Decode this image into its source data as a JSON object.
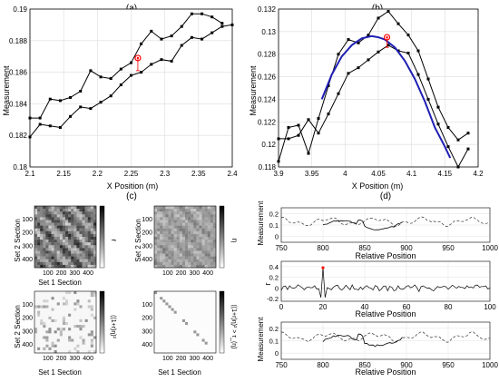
{
  "chart_data": [
    {
      "id": "a",
      "type": "line",
      "panel_label": "(a)",
      "xlabel": "X Position (m)",
      "ylabel": "Measurement",
      "xlim": [
        2.1,
        2.4
      ],
      "ylim": [
        0.18,
        0.19
      ],
      "xticks": [
        "2.1",
        "2.15",
        "2.2",
        "2.25",
        "2.3",
        "2.35",
        "2.4"
      ],
      "yticks": [
        "0.18",
        "0.182",
        "0.184",
        "0.186",
        "0.188",
        "0.19"
      ],
      "grid": true,
      "series": [
        {
          "color": "#000000",
          "marker": "square",
          "x": [
            2.1,
            2.115,
            2.13,
            2.145,
            2.16,
            2.175,
            2.19,
            2.205,
            2.22,
            2.235,
            2.25,
            2.265,
            2.28,
            2.295,
            2.31,
            2.325,
            2.34,
            2.355,
            2.37,
            2.385
          ],
          "y": [
            0.1831,
            0.1831,
            0.1843,
            0.1842,
            0.1844,
            0.1848,
            0.1861,
            0.1857,
            0.1856,
            0.1862,
            0.1866,
            0.1878,
            0.1886,
            0.1881,
            0.1883,
            0.1889,
            0.1897,
            0.1897,
            0.1895,
            0.1891
          ]
        },
        {
          "color": "#000000",
          "marker": "square",
          "x": [
            2.1,
            2.115,
            2.13,
            2.145,
            2.16,
            2.175,
            2.19,
            2.205,
            2.22,
            2.235,
            2.25,
            2.265,
            2.28,
            2.295,
            2.31,
            2.325,
            2.34,
            2.355,
            2.37,
            2.385,
            2.4
          ],
          "y": [
            0.1819,
            0.1827,
            0.1826,
            0.1825,
            0.1832,
            0.1838,
            0.1837,
            0.1841,
            0.1845,
            0.1852,
            0.1858,
            0.186,
            0.1865,
            0.1868,
            0.1867,
            0.1877,
            0.1882,
            0.1881,
            0.1885,
            0.1889,
            0.189
          ]
        }
      ],
      "highlight": {
        "x": 2.26,
        "y": 0.1869,
        "color": "#ff0000",
        "err_low": 0.1861
      }
    },
    {
      "id": "b",
      "type": "line",
      "panel_label": "(b)",
      "xlabel": "X Position (m)",
      "ylabel": "Measurement",
      "xlim": [
        3.9,
        4.2
      ],
      "ylim": [
        0.118,
        0.132
      ],
      "xticks": [
        "3.9",
        "3.95",
        "4",
        "4.05",
        "4.1",
        "4.15",
        "4.2"
      ],
      "yticks": [
        "0.118",
        "0.12",
        "0.122",
        "0.124",
        "0.126",
        "0.128",
        "0.13",
        "0.132"
      ],
      "grid": true,
      "series": [
        {
          "color": "#000000",
          "marker": "square",
          "x": [
            3.9,
            3.915,
            3.93,
            3.945,
            3.96,
            3.975,
            3.99,
            4.005,
            4.02,
            4.035,
            4.05,
            4.065,
            4.08,
            4.095,
            4.11,
            4.125,
            4.14,
            4.155,
            4.17,
            4.185
          ],
          "y": [
            0.1185,
            0.1215,
            0.1217,
            0.1192,
            0.1223,
            0.1252,
            0.128,
            0.1293,
            0.129,
            0.1297,
            0.1312,
            0.1318,
            0.1307,
            0.1297,
            0.1283,
            0.1258,
            0.1233,
            0.1215,
            0.1204,
            0.121
          ]
        },
        {
          "color": "#000000",
          "marker": "square",
          "x": [
            3.9,
            3.915,
            3.93,
            3.945,
            3.96,
            3.975,
            3.99,
            4.005,
            4.02,
            4.035,
            4.05,
            4.065,
            4.08,
            4.095,
            4.11,
            4.125,
            4.14,
            4.155,
            4.17,
            4.185
          ],
          "y": [
            0.1205,
            0.1205,
            0.1208,
            0.1222,
            0.121,
            0.1227,
            0.1245,
            0.1263,
            0.1268,
            0.1275,
            0.1282,
            0.1288,
            0.1283,
            0.1281,
            0.1262,
            0.124,
            0.1218,
            0.1198,
            0.118,
            0.1196
          ]
        },
        {
          "color": "#1f1fb4",
          "marker": "none",
          "width": 2,
          "x": [
            3.965,
            3.98,
            3.995,
            4.01,
            4.025,
            4.04,
            4.05,
            4.06,
            4.075,
            4.09,
            4.105,
            4.12,
            4.135,
            4.15,
            4.158
          ],
          "y": [
            0.124,
            0.1262,
            0.1278,
            0.1288,
            0.1294,
            0.1296,
            0.1295,
            0.1293,
            0.1286,
            0.1274,
            0.1258,
            0.1238,
            0.1215,
            0.1198,
            0.1188
          ]
        }
      ],
      "highlight": {
        "x": 4.063,
        "y": 0.1295,
        "color": "#ff0000",
        "err_low": 0.1286
      }
    },
    {
      "id": "c",
      "type": "heatmap",
      "panel_label": "(c)",
      "subplots": [
        {
          "xlabel": "Set 1 Section",
          "ylabel": "Set 2 Section",
          "colorbar_label": "r",
          "pattern": "dense"
        },
        {
          "xlabel": "",
          "ylabel": "Set 2 Section",
          "colorbar_label": "η",
          "pattern": "medium"
        },
        {
          "xlabel": "Set 1 Section",
          "ylabel": "Set 2 Section",
          "colorbar_label": "((1+r)η)²",
          "pattern": "sparse"
        },
        {
          "xlabel": "Set 1 Section",
          "ylabel": "",
          "colorbar_label": "((1+r)η)² > τ_(η)",
          "pattern": "diagonal"
        }
      ],
      "xticks": [
        "100",
        "200",
        "300",
        "400"
      ],
      "yticks": [
        "100",
        "200",
        "300",
        "400"
      ]
    },
    {
      "id": "d",
      "type": "line",
      "panel_label": "(d)",
      "subplots": [
        {
          "xlabel": "Relative Position",
          "ylabel": "Measurement",
          "xlim": [
            750,
            1000
          ],
          "ylim": [
            -0.05,
            0.25
          ],
          "xticks": [
            "750",
            "800",
            "850",
            "900",
            "950",
            "1000"
          ],
          "yticks": [
            "0",
            "0.1",
            "0.2"
          ]
        },
        {
          "xlabel": "Relative Position",
          "ylabel": "r",
          "xlim": [
            0,
            100
          ],
          "ylim": [
            -0.25,
            0.5
          ],
          "xticks": [
            "0",
            "20",
            "40",
            "60",
            "80",
            "100"
          ],
          "yticks": [
            "-0.2",
            "0",
            "0.2",
            "0.4"
          ],
          "highlight": {
            "x": 20,
            "y": 0.38,
            "color": "#ff0000"
          }
        },
        {
          "xlabel": "Relative Position",
          "ylabel": "Measurement",
          "xlim": [
            750,
            1000
          ],
          "ylim": [
            -0.05,
            0.25
          ],
          "xticks": [
            "750",
            "800",
            "850",
            "900",
            "950",
            "1000"
          ],
          "yticks": [
            "0",
            "0.1",
            "0.2"
          ]
        }
      ]
    }
  ]
}
